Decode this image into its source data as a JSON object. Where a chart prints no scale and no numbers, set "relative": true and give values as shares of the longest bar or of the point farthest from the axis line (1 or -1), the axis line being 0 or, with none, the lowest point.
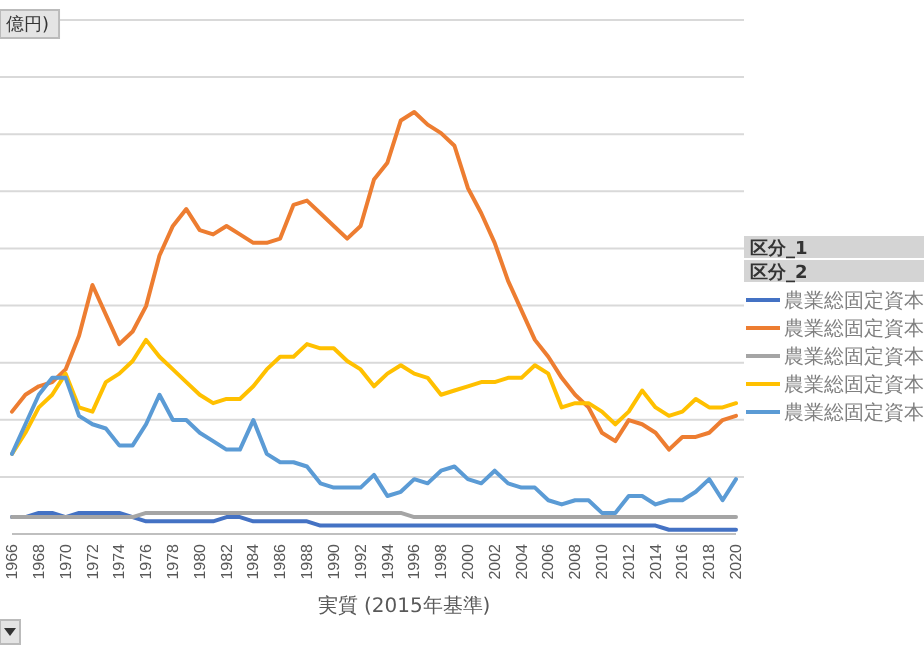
{
  "chart_data": {
    "type": "line",
    "relative": true,
    "grid": true,
    "legend": "right",
    "legend_title": "区分_1",
    "xlabel": "実質 (2015年基準)",
    "annotations": [
      "億円)",
      "区分_2"
    ],
    "categories": [
      "1966",
      null,
      "1968",
      null,
      "1970",
      null,
      "1972",
      null,
      "1974",
      null,
      "1976",
      null,
      "1978",
      null,
      "1980",
      null,
      "1982",
      null,
      "1984",
      null,
      "1986",
      null,
      "1988",
      null,
      "1990",
      null,
      "1992",
      null,
      "1994",
      null,
      "1996",
      null,
      "1998",
      null,
      "2000",
      null,
      "2002",
      null,
      "2004",
      null,
      "2006",
      null,
      "2008",
      null,
      "2010",
      null,
      "2012",
      null,
      "2014",
      null,
      "2016",
      null,
      "2018",
      null,
      "2020"
    ],
    "series": [
      {
        "name": "農業総固定資本",
        "color": "#4472c4",
        "values": [
          0.04,
          0.04,
          0.05,
          0.05,
          0.04,
          0.05,
          0.05,
          0.05,
          0.05,
          0.04,
          0.03,
          0.03,
          0.03,
          0.03,
          0.03,
          0.03,
          0.04,
          0.04,
          0.03,
          0.03,
          0.03,
          0.03,
          0.03,
          0.02,
          0.02,
          0.02,
          0.02,
          0.02,
          0.02,
          0.02,
          0.02,
          0.02,
          0.02,
          0.02,
          0.02,
          0.02,
          0.02,
          0.02,
          0.02,
          0.02,
          0.02,
          0.02,
          0.02,
          0.02,
          0.02,
          0.02,
          0.02,
          0.02,
          0.02,
          0.01,
          0.01,
          0.01,
          0.01,
          0.01,
          0.01
        ]
      },
      {
        "name": "農業総固定資本",
        "color": "#ed7d31",
        "values": [
          0.29,
          0.33,
          0.35,
          0.36,
          0.39,
          0.47,
          0.59,
          0.52,
          0.45,
          0.48,
          0.54,
          0.66,
          0.73,
          0.77,
          0.72,
          0.71,
          0.73,
          0.71,
          0.69,
          0.69,
          0.7,
          0.78,
          0.79,
          0.76,
          0.73,
          0.7,
          0.73,
          0.84,
          0.88,
          0.98,
          1,
          0.97,
          0.95,
          0.92,
          0.82,
          0.76,
          0.69,
          0.6,
          0.53,
          0.46,
          0.42,
          0.37,
          0.33,
          0.3,
          0.24,
          0.22,
          0.27,
          0.26,
          0.24,
          0.2,
          0.23,
          0.23,
          0.24,
          0.27,
          0.28
        ]
      },
      {
        "name": "農業総固定資本",
        "color": "#a5a5a5",
        "values": [
          0.04,
          0.04,
          0.04,
          0.04,
          0.04,
          0.04,
          0.04,
          0.04,
          0.04,
          0.04,
          0.05,
          0.05,
          0.05,
          0.05,
          0.05,
          0.05,
          0.05,
          0.05,
          0.05,
          0.05,
          0.05,
          0.05,
          0.05,
          0.05,
          0.05,
          0.05,
          0.05,
          0.05,
          0.05,
          0.05,
          0.04,
          0.04,
          0.04,
          0.04,
          0.04,
          0.04,
          0.04,
          0.04,
          0.04,
          0.04,
          0.04,
          0.04,
          0.04,
          0.04,
          0.04,
          0.04,
          0.04,
          0.04,
          0.04,
          0.04,
          0.04,
          0.04,
          0.04,
          0.04,
          0.04
        ]
      },
      {
        "name": "農業総固定資本",
        "color": "#ffc000",
        "values": [
          0.19,
          0.24,
          0.3,
          0.33,
          0.38,
          0.3,
          0.29,
          0.36,
          0.38,
          0.41,
          0.46,
          0.42,
          0.39,
          0.36,
          0.33,
          0.31,
          0.32,
          0.32,
          0.35,
          0.39,
          0.42,
          0.42,
          0.45,
          0.44,
          0.44,
          0.41,
          0.39,
          0.35,
          0.38,
          0.4,
          0.38,
          0.37,
          0.33,
          0.34,
          0.35,
          0.36,
          0.36,
          0.37,
          0.37,
          0.4,
          0.38,
          0.3,
          0.31,
          0.31,
          0.29,
          0.26,
          0.29,
          0.34,
          0.3,
          0.28,
          0.29,
          0.32,
          0.3,
          0.3,
          0.31
        ]
      },
      {
        "name": "農業総固定資本",
        "color": "#5b9bd5",
        "values": [
          0.19,
          0.26,
          0.33,
          0.37,
          0.37,
          0.28,
          0.26,
          0.25,
          0.21,
          0.21,
          0.26,
          0.33,
          0.27,
          0.27,
          0.24,
          0.22,
          0.2,
          0.2,
          0.27,
          0.19,
          0.17,
          0.17,
          0.16,
          0.12,
          0.11,
          0.11,
          0.11,
          0.14,
          0.09,
          0.1,
          0.13,
          0.12,
          0.15,
          0.16,
          0.13,
          0.12,
          0.15,
          0.12,
          0.11,
          0.11,
          0.08,
          0.07,
          0.08,
          0.08,
          0.05,
          0.05,
          0.09,
          0.09,
          0.07,
          0.08,
          0.08,
          0.1,
          0.13,
          0.08,
          0.13
        ]
      }
    ]
  }
}
